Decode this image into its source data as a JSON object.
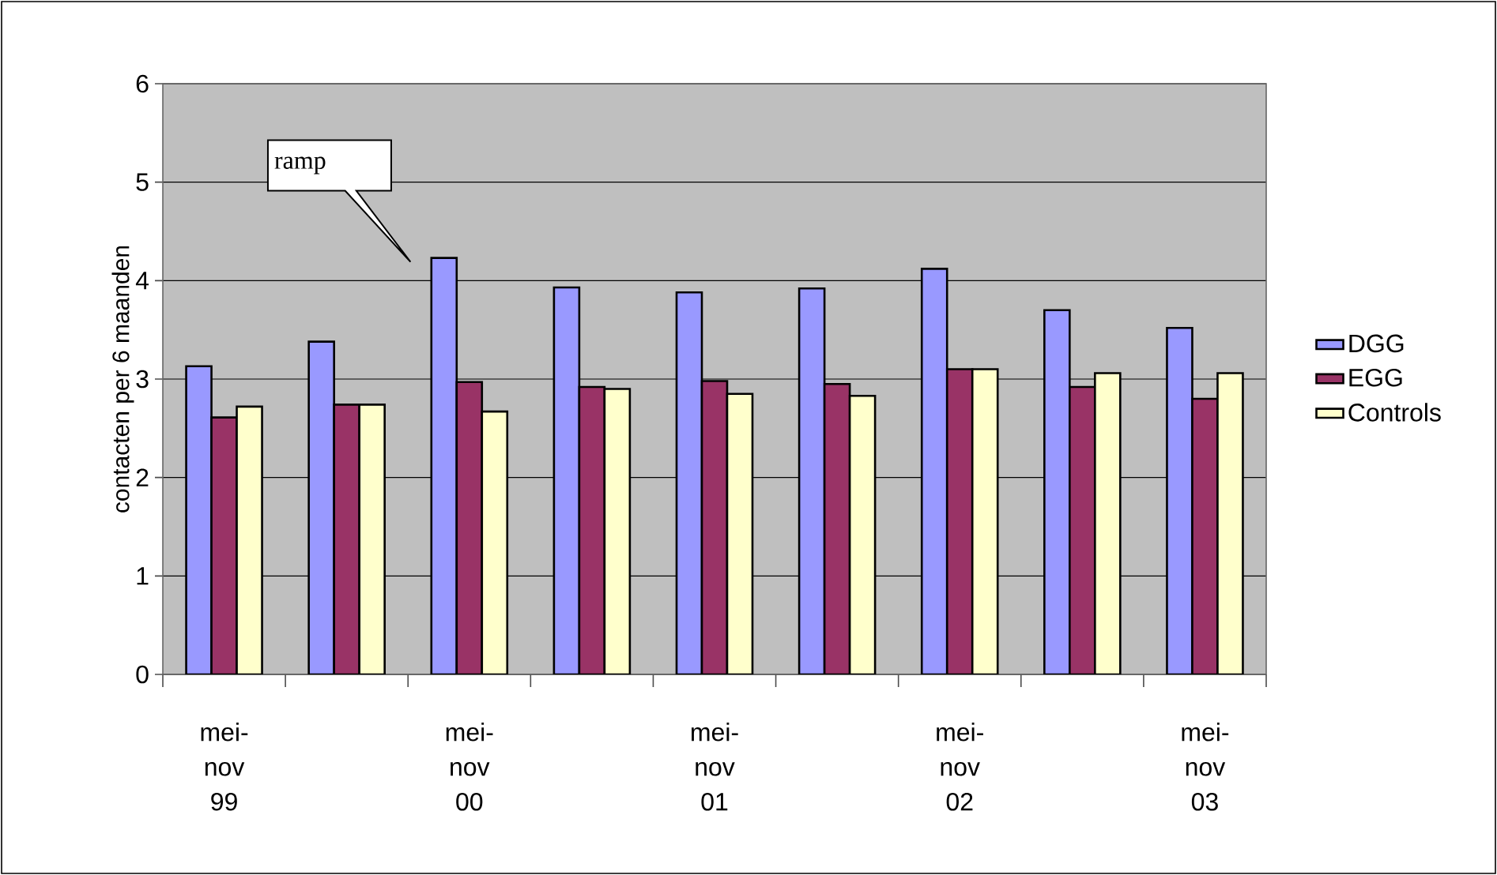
{
  "chart_data": {
    "type": "bar",
    "ylabel": "contacten per 6 maanden",
    "categories": [
      "mei-nov 99",
      null,
      "mei-nov 00",
      null,
      "mei-nov 01",
      null,
      "mei-nov 02",
      null,
      "mei-nov 03"
    ],
    "series": [
      {
        "name": "DGG",
        "color": "#9999ff",
        "values": [
          3.13,
          3.38,
          4.23,
          3.93,
          3.88,
          3.92,
          4.12,
          3.7,
          3.52
        ]
      },
      {
        "name": "EGG",
        "color": "#993366",
        "values": [
          2.61,
          2.74,
          2.97,
          2.92,
          2.98,
          2.95,
          3.1,
          2.92,
          2.8
        ]
      },
      {
        "name": "Controls",
        "color": "#ffffcc",
        "values": [
          2.72,
          2.74,
          2.67,
          2.9,
          2.85,
          2.83,
          3.1,
          3.06,
          3.06
        ]
      }
    ],
    "ylim": [
      0,
      6
    ],
    "yticks": [
      0,
      1,
      2,
      3,
      4,
      5,
      6
    ],
    "grid": "y",
    "legend": "right",
    "annotations": [
      "ramp"
    ]
  }
}
